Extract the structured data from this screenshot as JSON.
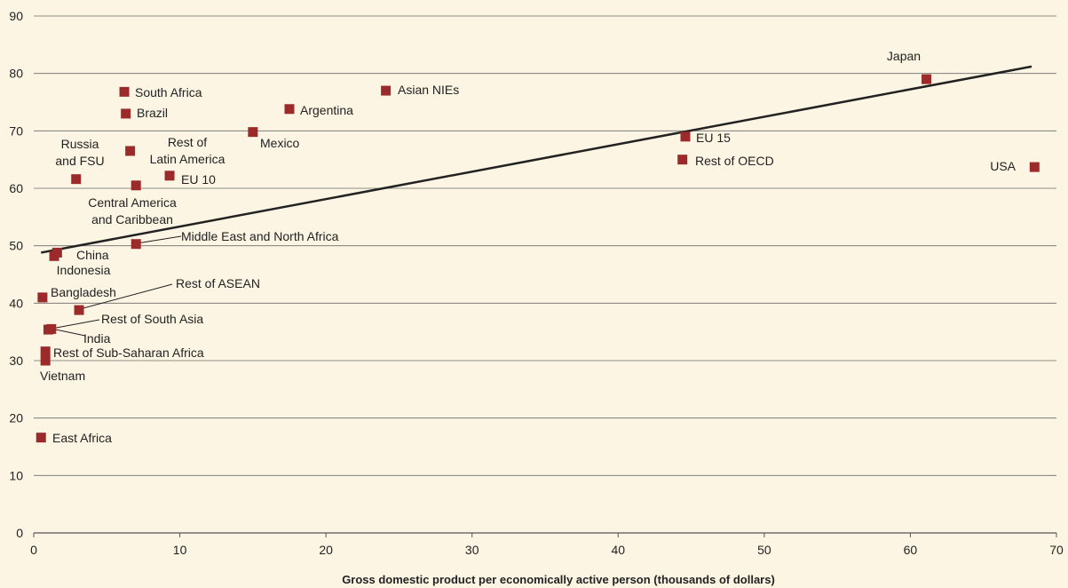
{
  "chart_data": {
    "type": "scatter",
    "title": "",
    "xlabel": "Gross domestic product per economically active person (thousands of dollars)",
    "ylabel": "",
    "xlim": [
      0,
      70
    ],
    "ylim": [
      0,
      90
    ],
    "x_ticks": [
      "0",
      "10",
      "20",
      "30",
      "40",
      "50",
      "60",
      "70"
    ],
    "y_ticks": [
      "0",
      "10",
      "20",
      "30",
      "40",
      "50",
      "60",
      "70",
      "80",
      "90"
    ],
    "grid": "horizontal",
    "marker_color": "#9b2a2a",
    "trendline": {
      "x": [
        0.5,
        68.3
      ],
      "y": [
        48.8,
        81.2
      ]
    },
    "points": [
      {
        "name": "Japan",
        "x": 61.1,
        "y": 79.0
      },
      {
        "name": "Asian NIEs",
        "x": 24.1,
        "y": 77.0
      },
      {
        "name": "South Africa",
        "x": 6.2,
        "y": 76.8
      },
      {
        "name": "Brazil",
        "x": 6.3,
        "y": 73.0
      },
      {
        "name": "Argentina",
        "x": 17.5,
        "y": 73.8
      },
      {
        "name": "Mexico",
        "x": 15.0,
        "y": 69.8
      },
      {
        "name": "EU 15",
        "x": 44.6,
        "y": 69.0
      },
      {
        "name": "Rest of Latin America",
        "x": 6.6,
        "y": 66.5
      },
      {
        "name": "Rest of OECD",
        "x": 44.4,
        "y": 65.0
      },
      {
        "name": "USA",
        "x": 68.5,
        "y": 63.7
      },
      {
        "name": "EU 10",
        "x": 9.3,
        "y": 62.2
      },
      {
        "name": "Russia and FSU",
        "x": 2.9,
        "y": 61.6
      },
      {
        "name": "Central America and Caribbean",
        "x": 7.0,
        "y": 60.5
      },
      {
        "name": "Middle East and North Africa",
        "x": 7.0,
        "y": 50.3
      },
      {
        "name": "China",
        "x": 1.6,
        "y": 48.8
      },
      {
        "name": "Indonesia",
        "x": 1.4,
        "y": 48.2
      },
      {
        "name": "Bangladesh",
        "x": 0.6,
        "y": 41.0
      },
      {
        "name": "Rest of ASEAN",
        "x": 3.1,
        "y": 38.8
      },
      {
        "name": "Rest of South Asia",
        "x": 1.2,
        "y": 35.5
      },
      {
        "name": "India",
        "x": 1.0,
        "y": 35.4
      },
      {
        "name": "Rest of Sub-Saharan Africa",
        "x": 0.8,
        "y": 31.6
      },
      {
        "name": "Vietnam",
        "x": 0.8,
        "y": 30.0
      },
      {
        "name": "East Africa",
        "x": 0.5,
        "y": 16.6
      }
    ]
  }
}
